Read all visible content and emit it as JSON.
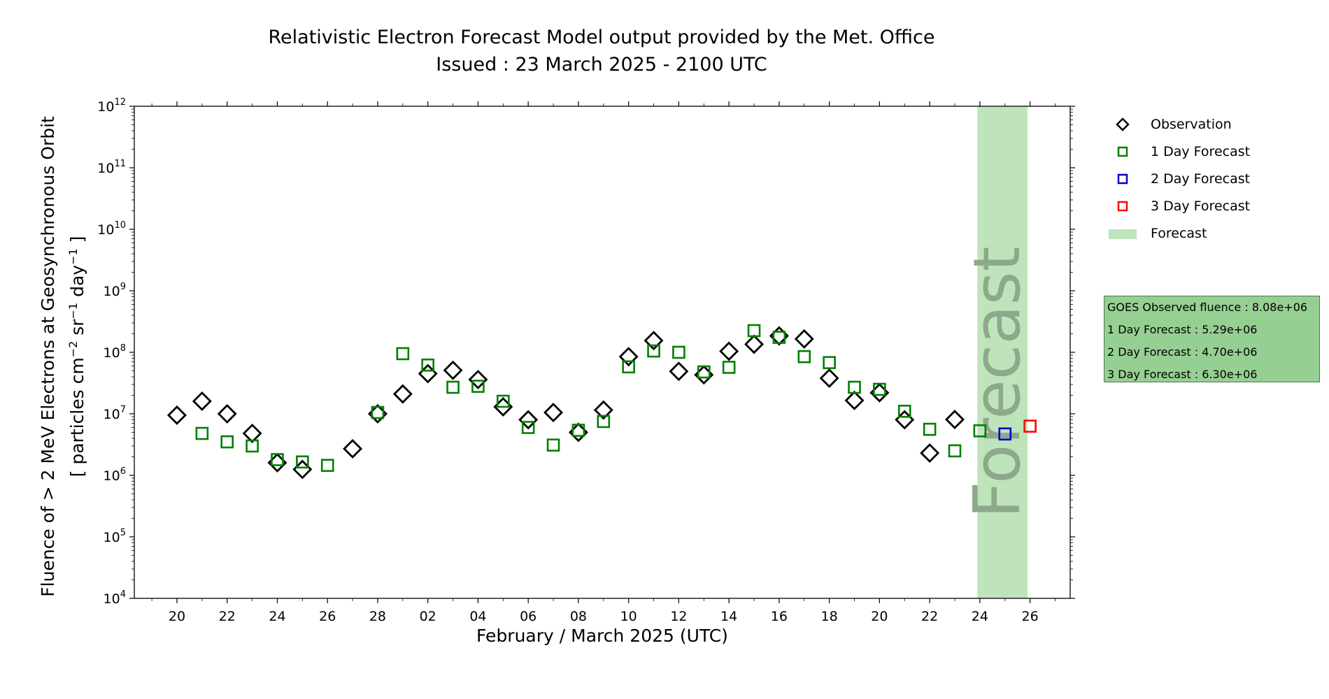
{
  "title": {
    "line1": "Relativistic Electron Forecast Model output provided by the Met. Office",
    "line2": "Issued : 23 March 2025 - 2100 UTC"
  },
  "axes": {
    "ylabel_line1": "Fluence of > 2 MeV Electrons at Geosynchronous Orbit",
    "ylabel_line2_parts": [
      "[ particles cm",
      "−2",
      " sr",
      "−1",
      " day",
      "−1",
      " ]"
    ],
    "xlabel": "February / March 2025 (UTC)"
  },
  "legend": {
    "observation": "Observation",
    "day1": "1 Day Forecast",
    "day2": "2 Day Forecast",
    "day3": "3 Day Forecast",
    "forecast": "Forecast"
  },
  "forecast_band_text": "Forecast",
  "info_box": {
    "observed": "GOES Observed fluence : 8.08e+06",
    "day1": "1 Day Forecast : 5.29e+06",
    "day2": "2 Day Forecast : 4.70e+06",
    "day3": "3 Day Forecast : 6.30e+06"
  },
  "colors": {
    "observation": "#000000",
    "day1": "#008000",
    "day2": "#0000cc",
    "day3": "#ff0000",
    "forecast_band": "#bfe4bb",
    "forecast_text": "#8ea88c",
    "info_box": "#96cf92"
  },
  "chart_data": {
    "type": "scatter",
    "yscale": "log",
    "ylim_exponent": [
      4,
      12
    ],
    "xlim_days": [
      18.3,
      55.6
    ],
    "x_unit": "days from 1 Feb 2025 (Feb = day, Mar N = 28+N)",
    "xtick_days": [
      20,
      22,
      24,
      26,
      28,
      30,
      32,
      34,
      36,
      38,
      40,
      42,
      44,
      46,
      48,
      50,
      52,
      54
    ],
    "xtick_labels": [
      "20",
      "22",
      "24",
      "26",
      "28",
      "02",
      "04",
      "06",
      "08",
      "10",
      "12",
      "14",
      "16",
      "18",
      "20",
      "22",
      "24",
      "26"
    ],
    "forecast_band_days": [
      51.9,
      53.9
    ],
    "series": [
      {
        "name": "Observation",
        "marker": "diamond",
        "x": [
          20,
          21,
          22,
          23,
          24,
          25,
          27,
          28,
          29,
          30,
          31,
          32,
          33,
          34,
          35,
          36,
          37,
          38,
          39,
          40,
          41,
          42,
          43,
          44,
          45,
          46,
          47,
          48,
          49,
          50,
          51,
          52
        ],
        "y": [
          9500000.0,
          16000000.0,
          10000000.0,
          4800000.0,
          1600000.0,
          1250000.0,
          2700000.0,
          10000000.0,
          21000000.0,
          45000000.0,
          51000000.0,
          36000000.0,
          13000000.0,
          8000000.0,
          10500000.0,
          5000000.0,
          11500000.0,
          85000000.0,
          155000000.0,
          49000000.0,
          43000000.0,
          104000000.0,
          135000000.0,
          185000000.0,
          165000000.0,
          38000000.0,
          16500000.0,
          22000000.0,
          8000000.0,
          2300000.0,
          8080000.0,
          null
        ]
      },
      {
        "name": "1 Day Forecast",
        "marker": "square",
        "x": [
          21,
          22,
          23,
          24,
          25,
          26,
          28,
          29,
          30,
          31,
          32,
          33,
          34,
          35,
          36,
          37,
          38,
          39,
          40,
          41,
          42,
          43,
          44,
          45,
          46,
          47,
          48,
          49,
          50,
          51,
          52
        ],
        "y": [
          4800000.0,
          3500000.0,
          3000000.0,
          1800000.0,
          1650000.0,
          1450000.0,
          10500000.0,
          95000000.0,
          62000000.0,
          27000000.0,
          28000000.0,
          16000000.0,
          6000000.0,
          3100000.0,
          5400000.0,
          7500000.0,
          58000000.0,
          105000000.0,
          100000000.0,
          48000000.0,
          57000000.0,
          225000000.0,
          175000000.0,
          85000000.0,
          68000000.0,
          27000000.0,
          25000000.0,
          11000000.0,
          5600000.0,
          2500000.0,
          5290000.0
        ]
      },
      {
        "name": "2 Day Forecast",
        "marker": "square",
        "x": [
          53
        ],
        "y": [
          4700000.0
        ]
      },
      {
        "name": "3 Day Forecast",
        "marker": "square",
        "x": [
          54
        ],
        "y": [
          6300000.0
        ]
      }
    ]
  }
}
